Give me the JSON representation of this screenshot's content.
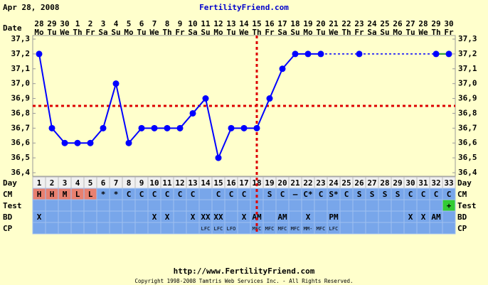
{
  "header": {
    "date": "Apr 28, 2008",
    "site": "FertilityFriend.com"
  },
  "chart_data": {
    "type": "line",
    "x_label": "Date",
    "categories": [
      28,
      29,
      30,
      1,
      2,
      3,
      4,
      5,
      6,
      7,
      8,
      9,
      10,
      11,
      12,
      13,
      14,
      15,
      16,
      17,
      18,
      19,
      20,
      21,
      22,
      23,
      24,
      25,
      26,
      27,
      28,
      29,
      30
    ],
    "weekdays": [
      "Mo",
      "Tu",
      "We",
      "Th",
      "Fr",
      "Sa",
      "Su",
      "Mo",
      "Tu",
      "We",
      "Th",
      "Fr",
      "Sa",
      "Su",
      "Mo",
      "Tu",
      "We",
      "Th",
      "Fr",
      "Sa",
      "Su",
      "Mo",
      "Tu",
      "We",
      "Th",
      "Fr",
      "Sa",
      "Su",
      "Mo",
      "Tu",
      "We",
      "Th",
      "Fr"
    ],
    "series": [
      {
        "color": "#0000ff",
        "values": [
          37.2,
          36.7,
          36.6,
          36.6,
          36.6,
          36.7,
          37.0,
          36.6,
          36.7,
          36.7,
          36.7,
          36.7,
          36.8,
          36.9,
          36.5,
          36.7,
          36.7,
          36.7,
          36.9,
          37.1,
          37.2,
          37.2,
          37.2,
          null,
          null,
          37.2,
          null,
          null,
          null,
          null,
          null,
          37.2,
          37.2
        ]
      }
    ],
    "ylim": [
      36.4,
      37.3
    ],
    "yticks": [
      {
        "value": 36.4,
        "label": "36,4"
      },
      {
        "value": 36.5,
        "label": "36,5"
      },
      {
        "value": 36.6,
        "label": "36,6"
      },
      {
        "value": 36.7,
        "label": "36,7"
      },
      {
        "value": 36.8,
        "label": "36,8"
      },
      {
        "value": 36.9,
        "label": "36,9"
      },
      {
        "value": 37.0,
        "label": "37,0"
      },
      {
        "value": 37.1,
        "label": "37,1"
      },
      {
        "value": 37.2,
        "label": "37,2"
      },
      {
        "value": 37.3,
        "label": "37,3"
      }
    ],
    "coverline": 36.85,
    "coverline_color": "#dd0000",
    "ovulation_date": 15
  },
  "table": {
    "rows": [
      {
        "label": "Day",
        "color": "#f0f0f0",
        "values": [
          1,
          2,
          3,
          4,
          5,
          6,
          7,
          8,
          9,
          10,
          11,
          12,
          13,
          14,
          15,
          16,
          17,
          18,
          19,
          20,
          21,
          22,
          23,
          24,
          25,
          26,
          27,
          28,
          29,
          30,
          31,
          32,
          33
        ]
      },
      {
        "label": "CM",
        "color": "#78a6ea",
        "values": [
          "H",
          "H",
          "M",
          "L",
          "L",
          "*",
          "*",
          "C",
          "C",
          "C",
          "C",
          "C",
          "C",
          null,
          "C",
          "C",
          "C",
          null,
          "S",
          "C",
          "–",
          "C*",
          "C",
          "S*",
          "C",
          "S",
          "S",
          "S",
          "S",
          "C",
          "C",
          "C",
          "C"
        ],
        "cell_colors": [
          "#e8806f",
          "#e8806f",
          "#e8806f",
          "#e8806f",
          "#e8806f",
          null,
          null,
          null,
          null,
          null,
          null,
          null,
          null,
          null,
          null,
          null,
          null,
          null,
          null,
          null,
          null,
          null,
          null,
          null,
          null,
          null,
          null,
          null,
          null,
          null,
          null,
          null,
          null
        ]
      },
      {
        "label": "Test",
        "color": "#78a6ea",
        "values": [
          null,
          null,
          null,
          null,
          null,
          null,
          null,
          null,
          null,
          null,
          null,
          null,
          null,
          null,
          null,
          null,
          null,
          null,
          null,
          null,
          null,
          null,
          null,
          null,
          null,
          null,
          null,
          null,
          null,
          null,
          null,
          null,
          "+"
        ],
        "cell_colors": [
          null,
          null,
          null,
          null,
          null,
          null,
          null,
          null,
          null,
          null,
          null,
          null,
          null,
          null,
          null,
          null,
          null,
          null,
          null,
          null,
          null,
          null,
          null,
          null,
          null,
          null,
          null,
          null,
          null,
          null,
          null,
          null,
          "#33cc33"
        ]
      },
      {
        "label": "BD",
        "color": "#78a6ea",
        "values": [
          "X",
          null,
          null,
          null,
          null,
          null,
          null,
          null,
          null,
          "X",
          "X",
          null,
          "X",
          "XX",
          "XX",
          null,
          "X",
          "AM",
          null,
          "AM",
          null,
          "X",
          null,
          "PM",
          null,
          null,
          null,
          null,
          null,
          "X",
          "X",
          "AM",
          null
        ]
      },
      {
        "label": "CP",
        "color": "#78a6ea",
        "small": true,
        "values": [
          null,
          null,
          null,
          null,
          null,
          null,
          null,
          null,
          null,
          null,
          null,
          null,
          null,
          "LFC",
          "LFC",
          "LFO",
          null,
          "MFC",
          "MFC",
          "MFC",
          "MFC",
          "MM-",
          "MFC",
          "LFC",
          null,
          null,
          null,
          null,
          null,
          null,
          null,
          null,
          null
        ]
      }
    ]
  },
  "footer": {
    "url": "http://www.FertilityFriend.com",
    "copyright": "Copyright 1998-2008 Tamtris Web Services Inc. - All Rights Reserved."
  }
}
